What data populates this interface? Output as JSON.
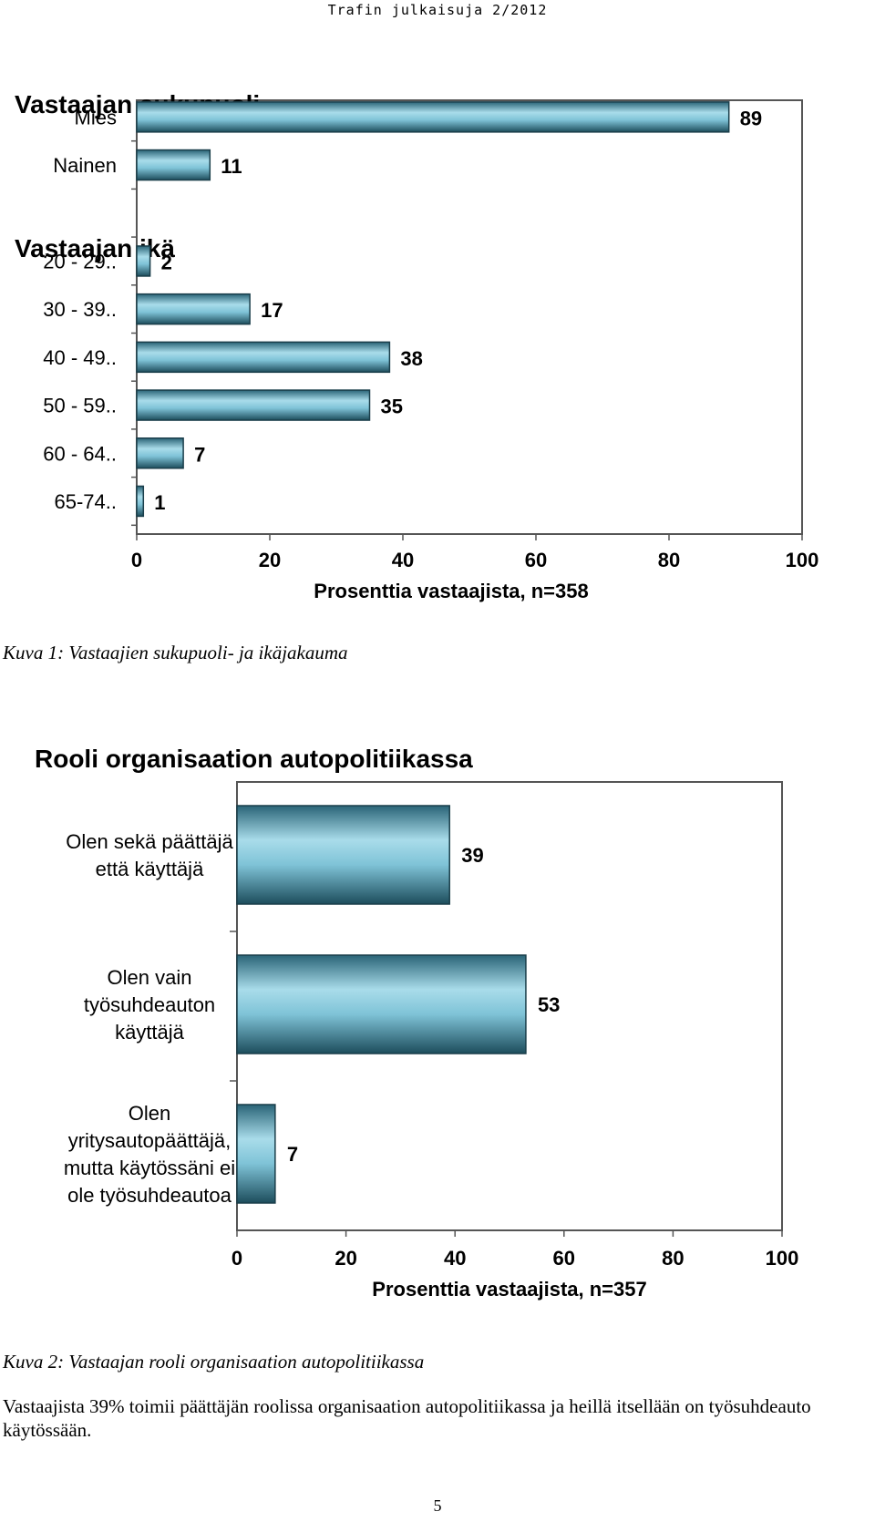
{
  "header": "Trafin julkaisuja 2/2012",
  "chart_data": [
    {
      "type": "bar",
      "orientation": "horizontal",
      "groups": [
        {
          "title": "Vastaajan sukupuoli",
          "categories": [
            "Mies",
            "Nainen"
          ],
          "values": [
            89,
            11
          ]
        },
        {
          "title": "Vastaajan ikä",
          "categories": [
            "20 - 29..",
            "30 - 39..",
            "40 - 49..",
            "50 - 59..",
            "60 - 64..",
            "65-74.."
          ],
          "values": [
            2,
            17,
            38,
            35,
            7,
            1
          ]
        }
      ],
      "xlabel": "Prosenttia vastaajista, n=358",
      "xlim": [
        0,
        100
      ],
      "xticks": [
        "0",
        "20",
        "40",
        "60",
        "80",
        "100"
      ],
      "bar_color": "#4f97ad"
    },
    {
      "type": "bar",
      "orientation": "horizontal",
      "title": "Rooli organisaation autopolitiikassa",
      "categories": [
        [
          "Olen sekä päättäjä",
          "että käyttäjä"
        ],
        [
          "Olen vain",
          "työsuhdeauton",
          "käyttäjä"
        ],
        [
          "Olen",
          "yritysautopäättäjä,",
          "mutta käytössäni ei",
          "ole työsuhdeautoa"
        ]
      ],
      "values": [
        39,
        53,
        7
      ],
      "xlabel": "Prosenttia vastaajista, n=357",
      "xlim": [
        0,
        100
      ],
      "xticks": [
        "0",
        "20",
        "40",
        "60",
        "80",
        "100"
      ],
      "bar_color": "#4f97ad"
    }
  ],
  "captions": {
    "figure1": "Kuva 1: Vastaajien sukupuoli- ja ikäjakauma",
    "figure2": "Kuva 2: Vastaajan rooli organisaation autopolitiikassa"
  },
  "body_text": "Vastaajista 39% toimii päättäjän roolissa organisaation autopolitiikassa ja heillä itsellään on työsuhdeauto käytössään.",
  "page_number": "5"
}
